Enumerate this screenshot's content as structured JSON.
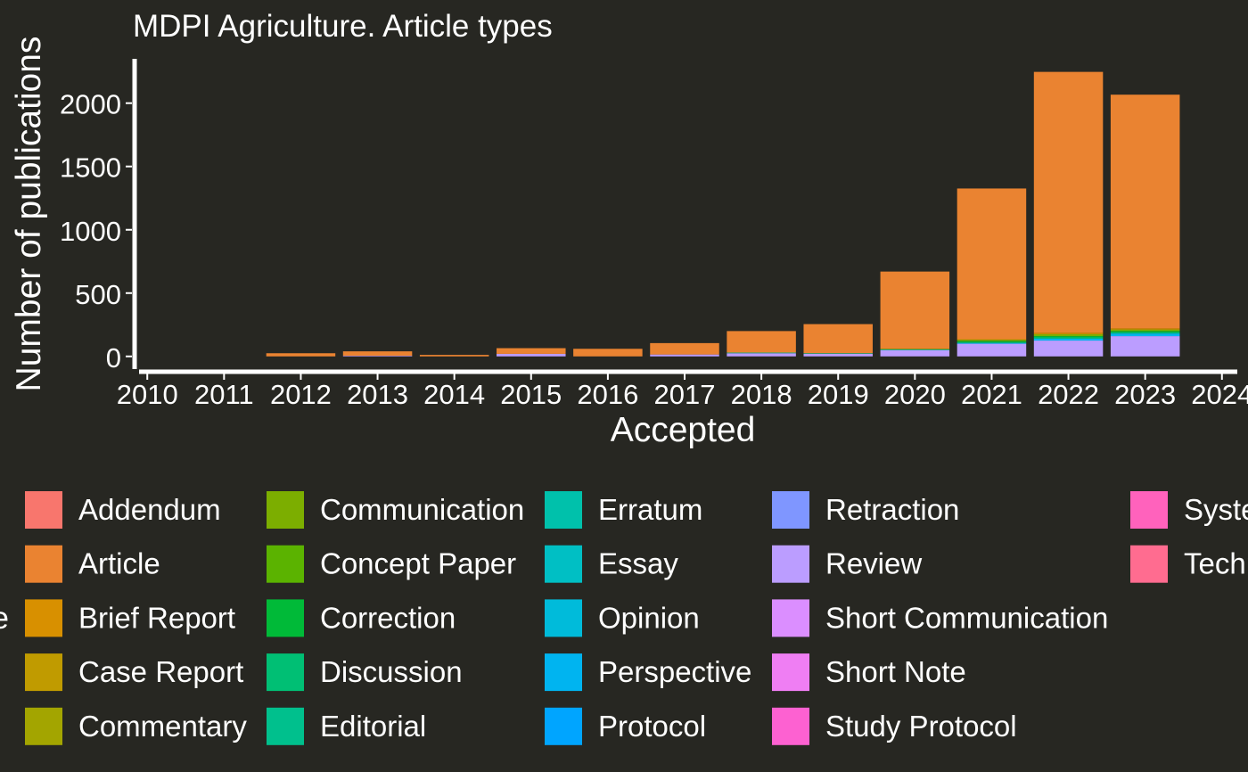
{
  "chart_data": {
    "type": "bar",
    "stacked": true,
    "title": "MDPI Agriculture. Article types",
    "xlabel": "Accepted",
    "ylabel": "Number of publications",
    "xlim": [
      2009.8,
      2024.2
    ],
    "ylim": [
      -100,
      2350
    ],
    "x_ticks": [
      "2010",
      "2011",
      "2012",
      "2013",
      "2014",
      "2015",
      "2016",
      "2017",
      "2018",
      "2019",
      "2020",
      "2021",
      "2022",
      "2023",
      "2024"
    ],
    "y_ticks": [
      "0",
      "500",
      "1000",
      "1500",
      "2000"
    ],
    "y_tick_values": [
      0,
      500,
      1000,
      1500,
      2000
    ],
    "categories": [
      "2010",
      "2011",
      "2012",
      "2013",
      "2014",
      "2015",
      "2016",
      "2017",
      "2018",
      "2019",
      "2020",
      "2021",
      "2022",
      "2023"
    ],
    "series": [
      {
        "name": "Addendum",
        "color": "#F8766D",
        "values": [
          0,
          0,
          0,
          0,
          0,
          0,
          0,
          0,
          0,
          0,
          0,
          0,
          0,
          0
        ]
      },
      {
        "name": "Article",
        "color": "#EA8331",
        "values": [
          0,
          0,
          25,
          35,
          12,
          45,
          60,
          90,
          170,
          230,
          610,
          1190,
          2060,
          1845
        ]
      },
      {
        "name": "Brief Report",
        "color": "#D89000",
        "values": [
          0,
          0,
          0,
          0,
          0,
          0,
          0,
          0,
          0,
          0,
          0,
          5,
          12,
          10
        ]
      },
      {
        "name": "Case Report",
        "color": "#C09B00",
        "values": [
          0,
          0,
          0,
          0,
          0,
          0,
          0,
          0,
          0,
          0,
          0,
          0,
          0,
          0
        ]
      },
      {
        "name": "Commentary",
        "color": "#A3A500",
        "values": [
          0,
          0,
          0,
          0,
          0,
          0,
          0,
          0,
          0,
          0,
          0,
          0,
          0,
          0
        ]
      },
      {
        "name": "Communication",
        "color": "#7CAE00",
        "values": [
          0,
          0,
          0,
          0,
          0,
          0,
          0,
          0,
          0,
          0,
          5,
          10,
          15,
          12
        ]
      },
      {
        "name": "Concept Paper",
        "color": "#5BB300",
        "values": [
          0,
          0,
          0,
          0,
          0,
          0,
          0,
          0,
          0,
          0,
          0,
          0,
          0,
          0
        ]
      },
      {
        "name": "Correction",
        "color": "#00BA38",
        "values": [
          0,
          0,
          0,
          0,
          0,
          0,
          0,
          0,
          0,
          0,
          0,
          8,
          10,
          10
        ]
      },
      {
        "name": "Discussion",
        "color": "#00BF74",
        "values": [
          0,
          0,
          0,
          0,
          0,
          0,
          0,
          0,
          0,
          0,
          0,
          0,
          0,
          0
        ]
      },
      {
        "name": "Editorial",
        "color": "#00C08D",
        "values": [
          0,
          0,
          0,
          0,
          0,
          0,
          0,
          0,
          5,
          5,
          5,
          8,
          10,
          10
        ]
      },
      {
        "name": "Erratum",
        "color": "#00C1AB",
        "values": [
          0,
          0,
          0,
          0,
          0,
          0,
          0,
          0,
          0,
          0,
          0,
          0,
          0,
          0
        ]
      },
      {
        "name": "Essay",
        "color": "#00BFC4",
        "values": [
          0,
          0,
          0,
          0,
          0,
          0,
          0,
          0,
          0,
          0,
          0,
          0,
          0,
          0
        ]
      },
      {
        "name": "Opinion",
        "color": "#00BBDA",
        "values": [
          0,
          0,
          0,
          0,
          0,
          0,
          0,
          0,
          0,
          0,
          0,
          0,
          0,
          0
        ]
      },
      {
        "name": "Perspective",
        "color": "#00B4F0",
        "values": [
          0,
          0,
          0,
          0,
          0,
          0,
          0,
          0,
          0,
          0,
          0,
          5,
          15,
          20
        ]
      },
      {
        "name": "Protocol",
        "color": "#00A5FF",
        "values": [
          0,
          0,
          0,
          0,
          0,
          0,
          0,
          0,
          0,
          0,
          0,
          0,
          0,
          0
        ]
      },
      {
        "name": "Retraction",
        "color": "#7F96FF",
        "values": [
          0,
          0,
          0,
          0,
          0,
          0,
          0,
          0,
          0,
          0,
          0,
          0,
          0,
          0
        ]
      },
      {
        "name": "Review",
        "color": "#BB9DFF",
        "values": [
          0,
          0,
          0,
          5,
          0,
          20,
          0,
          15,
          25,
          20,
          50,
          100,
          125,
          160
        ]
      },
      {
        "name": "Short Communication",
        "color": "#DB8EFF",
        "values": [
          0,
          0,
          0,
          0,
          0,
          0,
          0,
          0,
          0,
          0,
          0,
          0,
          0,
          0
        ]
      },
      {
        "name": "Short Note",
        "color": "#EF7EF3",
        "values": [
          0,
          0,
          0,
          0,
          0,
          0,
          0,
          0,
          0,
          0,
          0,
          0,
          0,
          0
        ]
      },
      {
        "name": "Study Protocol",
        "color": "#FD61D1",
        "values": [
          0,
          0,
          0,
          0,
          0,
          0,
          0,
          0,
          0,
          0,
          0,
          0,
          0,
          0
        ]
      },
      {
        "name": "Systematic Review",
        "color": "#FF62BC",
        "values": [
          0,
          0,
          0,
          0,
          0,
          0,
          0,
          0,
          0,
          0,
          0,
          0,
          0,
          0
        ]
      },
      {
        "name": "Technical Note",
        "color": "#FF6C90",
        "values": [
          0,
          0,
          0,
          0,
          0,
          0,
          0,
          0,
          0,
          0,
          0,
          0,
          0,
          0
        ]
      }
    ],
    "legend_title": "Type",
    "legend_position": "bottom",
    "legend_columns": [
      [
        "Addendum",
        "Article",
        "Brief Report",
        "Case Report",
        "Commentary"
      ],
      [
        "Communication",
        "Concept Paper",
        "Correction",
        "Discussion",
        "Editorial"
      ],
      [
        "Erratum",
        "Essay",
        "Opinion",
        "Perspective",
        "Protocol"
      ],
      [
        "Retraction",
        "Review",
        "Short Communication",
        "Short Note",
        "Study Protocol"
      ],
      [
        "Systematic Review",
        "Technical Note"
      ]
    ],
    "grid": false,
    "background_color": "#272722",
    "text_color": "#ffffff"
  }
}
